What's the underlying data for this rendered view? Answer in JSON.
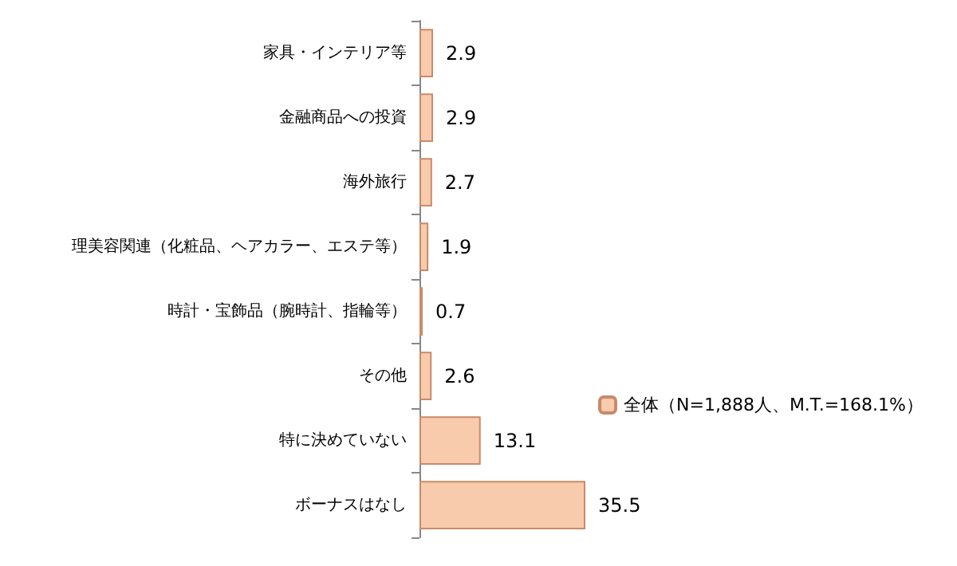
{
  "chart_data": {
    "type": "bar",
    "orientation": "horizontal",
    "categories": [
      "家具・インテリア等",
      "金融商品への投資",
      "海外旅行",
      "理美容関連（化粧品、ヘアカラー、エステ等）",
      "時計・宝飾品（腕時計、指輪等）",
      "その他",
      "特に決めていない",
      "ボーナスはなし"
    ],
    "series": [
      {
        "name": "全体（N=1,888人、M.T.=168.1%）",
        "color": "#f8cbad",
        "values": [
          2.9,
          2.9,
          2.7,
          1.9,
          0.7,
          2.6,
          13.1,
          35.5
        ]
      }
    ],
    "data_labels": true,
    "legend": "right"
  }
}
